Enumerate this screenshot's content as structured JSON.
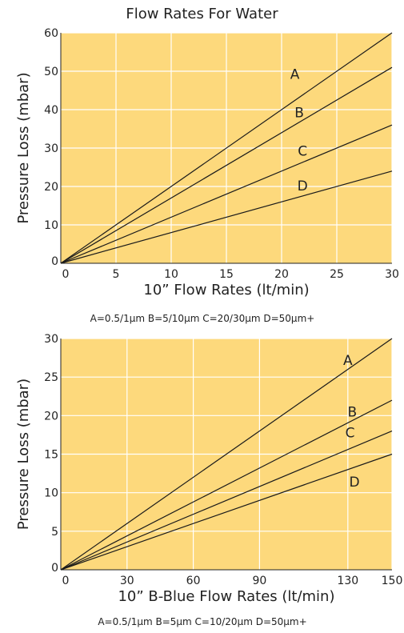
{
  "page_title": "Flow Rates For Water",
  "chart_data": [
    {
      "type": "line",
      "xlabel": "10” Flow Rates (lt/min)",
      "ylabel": "Pressure Loss (mbar)",
      "xlim": [
        0,
        30
      ],
      "ylim": [
        0,
        60
      ],
      "xticks": [
        0,
        5,
        10,
        15,
        20,
        25,
        30
      ],
      "yticks": [
        0,
        10,
        20,
        30,
        40,
        50,
        60
      ],
      "grid": true,
      "series": [
        {
          "name": "A",
          "x": [
            0,
            30
          ],
          "y": [
            0,
            60
          ],
          "label_at": [
            21.2,
            48
          ]
        },
        {
          "name": "B",
          "x": [
            0,
            30
          ],
          "y": [
            0,
            51
          ],
          "label_at": [
            21.6,
            38
          ]
        },
        {
          "name": "C",
          "x": [
            0,
            30
          ],
          "y": [
            0,
            36
          ],
          "label_at": [
            21.9,
            28
          ]
        },
        {
          "name": "D",
          "x": [
            0,
            30
          ],
          "y": [
            0,
            24
          ],
          "label_at": [
            21.9,
            19
          ]
        }
      ],
      "footnote": "A=0.5/1µm B=5/10µm C=20/30µm D=50µm+"
    },
    {
      "type": "line",
      "xlabel": "10” B-Blue Flow Rates (lt/min)",
      "ylabel": "Pressure Loss (mbar)",
      "xlim": [
        0,
        150
      ],
      "ylim": [
        0,
        30
      ],
      "xticks": [
        0,
        30,
        60,
        90,
        130,
        150
      ],
      "yticks": [
        0,
        5,
        10,
        15,
        20,
        25,
        30
      ],
      "grid": true,
      "series": [
        {
          "name": "A",
          "x": [
            0,
            150
          ],
          "y": [
            0,
            30
          ],
          "label_at": [
            130,
            26.6
          ]
        },
        {
          "name": "B",
          "x": [
            0,
            150
          ],
          "y": [
            0,
            22
          ],
          "label_at": [
            132,
            19.9
          ]
        },
        {
          "name": "C",
          "x": [
            0,
            150
          ],
          "y": [
            0,
            18
          ],
          "label_at": [
            131,
            17.2
          ]
        },
        {
          "name": "D",
          "x": [
            0,
            150
          ],
          "y": [
            0,
            15
          ],
          "label_at": [
            133,
            10.8
          ]
        }
      ],
      "footnote": "A=0.5/1µm B=5µm C=10/20µm D=50µm+"
    }
  ]
}
